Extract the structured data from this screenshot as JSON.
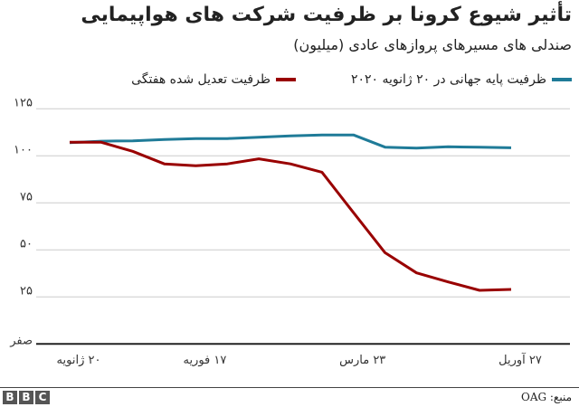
{
  "chart_data": {
    "type": "line",
    "title": "تأثیر شیوع کرونا بر ظرفیت شرکت های هواپیمایی",
    "subtitle": "صندلی های مسیرهای پروازهای عادی (میلیون)",
    "x": [
      "2020-01-20",
      "2020-01-27",
      "2020-02-03",
      "2020-02-10",
      "2020-02-17",
      "2020-02-24",
      "2020-03-02",
      "2020-03-09",
      "2020-03-16",
      "2020-03-23",
      "2020-03-30",
      "2020-04-06",
      "2020-04-13",
      "2020-04-20",
      "2020-04-27"
    ],
    "series": [
      {
        "name": "ظرفیت پایه جهانی در ۲۰ ژانویه ۲۰۲۰",
        "color": "#1f7b98",
        "values": [
          107,
          107.8,
          108,
          108.7,
          109.2,
          109.2,
          109.9,
          110.6,
          111.1,
          111.1,
          104.6,
          104.1,
          104.8,
          104.6,
          104.3
        ]
      },
      {
        "name": "ظرفیت  تعدیل شده هفتگی",
        "color": "#990000",
        "values": [
          107.2,
          107.2,
          102.4,
          95.7,
          94.7,
          95.7,
          98.4,
          95.7,
          91.3,
          69.8,
          48.5,
          37.8,
          33,
          28.5,
          29
        ]
      }
    ],
    "ylim": [
      0,
      125
    ],
    "yticks": [
      0,
      25,
      50,
      75,
      100,
      125
    ],
    "ytick_labels": [
      "صفر",
      "۲۵",
      "۵۰",
      "۷۵",
      "۱۰۰",
      "۱۲۵"
    ],
    "xtick_dates": [
      "2020-01-20",
      "2020-02-17",
      "2020-03-23",
      "2020-04-27"
    ],
    "xtick_labels": [
      "۲۰ ژانویه",
      "۱۷ فوریه",
      "۲۳ مارس",
      "۲۷ آوریل"
    ],
    "grid": true,
    "legend_position": "top"
  },
  "footer": {
    "source": "منبع: OAG",
    "logo": "BBC"
  }
}
